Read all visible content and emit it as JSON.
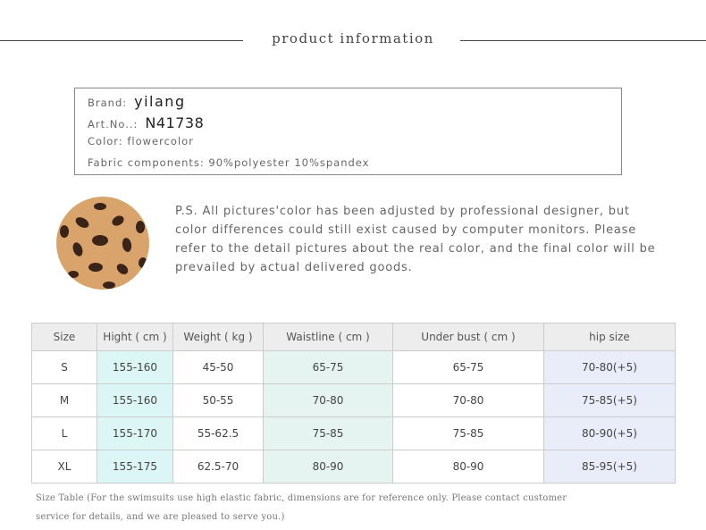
{
  "header": {
    "title": "product information"
  },
  "info": {
    "brand_label": "Brand:",
    "brand": "yilang",
    "art_label": "Art.No..:",
    "art": "N41738",
    "color": "Color:  flowercolor",
    "fabric": "Fabric components: 90%polyester   10%spandex"
  },
  "note": {
    "lines": [
      "P.S.  All pictures'color has been adjusted by professional designer, but",
      "color differences could still exist caused by computer monitors. Please",
      "refer to the detail pictures about the real color, and the final color will be",
      "prevailed by actual delivered goods."
    ]
  },
  "table": {
    "header": [
      "Size",
      "Hight ( cm )",
      "Weight  ( kg )",
      "Waistline ( cm )",
      "Under bust  ( cm )",
      "hip size"
    ],
    "rows": [
      [
        "S",
        "155-160",
        "45-50",
        "65-75",
        "65-75",
        "70-80(+5)"
      ],
      [
        "M",
        "155-160",
        "50-55",
        "70-80",
        "70-80",
        "75-85(+5)"
      ],
      [
        "L",
        "155-170",
        "55-62.5",
        "75-85",
        "75-85",
        "80-90(+5)"
      ],
      [
        "XL",
        "155-175",
        "62.5-70",
        "80-90",
        "80-90",
        "85-95(+5)"
      ]
    ]
  },
  "footer": {
    "lines": [
      "Size Table (For the swimsuits use high elastic fabric, dimensions are for reference only. Please contact customer",
      "service for details, and we are pleased to serve you.)"
    ]
  }
}
